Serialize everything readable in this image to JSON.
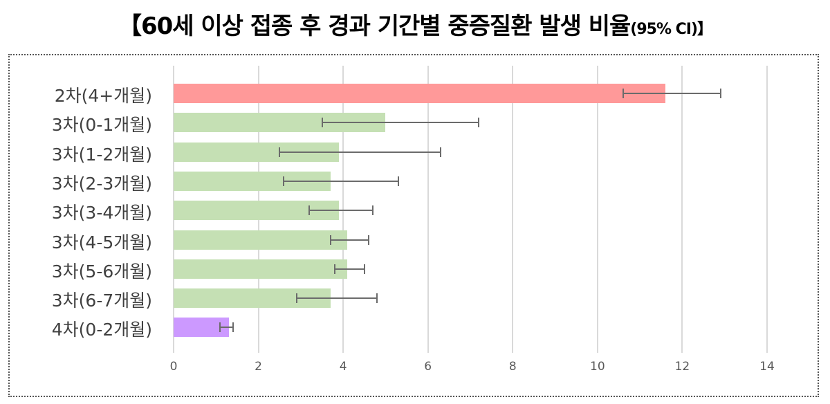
{
  "title": {
    "main": "【60세 이상 접종 후 경과 기간별 중증질환 발생 비율",
    "suffix": "(95% CI)】"
  },
  "chart_data": {
    "type": "bar",
    "orientation": "horizontal",
    "title": "【60세 이상 접종 후 경과 기간별 중증질환 발생 비율(95% CI)】",
    "xlabel": "",
    "ylabel": "",
    "xlim": [
      0,
      14
    ],
    "xticks": [
      0,
      2,
      4,
      6,
      8,
      10,
      12,
      14
    ],
    "grid": true,
    "legend": null,
    "categories": [
      "2차(4+개월)",
      "3차(0-1개월)",
      "3차(1-2개월)",
      "3차(2-3개월)",
      "3차(3-4개월)",
      "3차(4-5개월)",
      "3차(5-6개월)",
      "3차(6-7개월)",
      "4차(0-2개월)"
    ],
    "values": [
      11.6,
      5.0,
      3.9,
      3.7,
      3.9,
      4.1,
      4.1,
      3.7,
      1.3
    ],
    "ci_lower": [
      10.6,
      3.5,
      2.5,
      2.6,
      3.2,
      3.7,
      3.8,
      2.9,
      1.1
    ],
    "ci_upper": [
      12.9,
      7.2,
      6.3,
      5.3,
      4.7,
      4.6,
      4.5,
      4.8,
      1.4
    ],
    "colors": [
      "#ff9999",
      "#c5e0b4",
      "#c5e0b4",
      "#c5e0b4",
      "#c5e0b4",
      "#c5e0b4",
      "#c5e0b4",
      "#c5e0b4",
      "#cc99ff"
    ]
  }
}
